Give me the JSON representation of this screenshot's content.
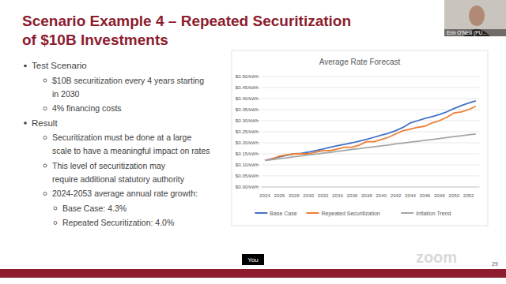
{
  "slide": {
    "title": [
      "Scenario Example 4 – Repeated Securitization",
      "of  $10B Investments"
    ],
    "bullets": [
      {
        "level": 1,
        "lines": [
          "Test Scenario"
        ]
      },
      {
        "level": 2,
        "lines": [
          "$10B securitization every 4 years starting",
          "in 2030"
        ]
      },
      {
        "level": 2,
        "lines": [
          "4% financing costs"
        ]
      },
      {
        "level": 1,
        "lines": [
          "Result"
        ]
      },
      {
        "level": 2,
        "lines": [
          "Securitization must be done at a large",
          "scale to have a meaningful impact on rates"
        ]
      },
      {
        "level": 2,
        "lines": [
          "This level of securitization may",
          "require additional statutory authority"
        ]
      },
      {
        "level": 2,
        "lines": [
          "2024-2053 average annual rate growth:"
        ]
      },
      {
        "level": 3,
        "lines": [
          "Base Case: 4.3%"
        ]
      },
      {
        "level": 3,
        "lines": [
          "Repeated Securitization: 4.0%"
        ]
      }
    ],
    "page_number": "29"
  },
  "overlay": {
    "speaker": "Erin O'Neill (PU...",
    "caption": "You",
    "logo": "zoom"
  },
  "chart_data": {
    "type": "line",
    "title": "Average Rate Forecast",
    "categories": [
      "2024",
      null,
      "2026",
      null,
      "2028",
      null,
      "2030",
      null,
      "2032",
      null,
      "2034",
      null,
      "2036",
      null,
      "2038",
      null,
      "2040",
      null,
      "2042",
      null,
      "2044",
      null,
      "2046",
      null,
      "2048",
      null,
      "2050",
      null,
      "2052",
      null
    ],
    "series": [
      {
        "name": "Base Case",
        "color": "#4472c4",
        "values": [
          0.12,
          0.128,
          0.136,
          0.143,
          0.15,
          0.152,
          0.158,
          0.165,
          0.172,
          0.18,
          0.187,
          0.193,
          0.2,
          0.208,
          0.216,
          0.225,
          0.234,
          0.243,
          0.255,
          0.27,
          0.29,
          0.3,
          0.31,
          0.318,
          0.328,
          0.34,
          0.355,
          0.368,
          0.38,
          0.39
        ]
      },
      {
        "name": "Repeated Securitization",
        "color": "#ed7d31",
        "values": [
          0.12,
          0.126,
          0.14,
          0.145,
          0.15,
          0.15,
          0.15,
          0.158,
          0.165,
          0.165,
          0.172,
          0.18,
          0.18,
          0.19,
          0.205,
          0.205,
          0.215,
          0.225,
          0.24,
          0.255,
          0.262,
          0.27,
          0.275,
          0.29,
          0.3,
          0.315,
          0.335,
          0.34,
          0.35,
          0.365
        ]
      },
      {
        "name": "Inflation Trend",
        "color": "#a5a5a5",
        "values": [
          0.12,
          0.124,
          0.128,
          0.132,
          0.137,
          0.141,
          0.145,
          0.149,
          0.153,
          0.157,
          0.161,
          0.166,
          0.17,
          0.174,
          0.178,
          0.182,
          0.186,
          0.19,
          0.195,
          0.199,
          0.203,
          0.207,
          0.211,
          0.215,
          0.219,
          0.224,
          0.228,
          0.232,
          0.236,
          0.24
        ]
      }
    ],
    "ylim": [
      0,
      0.5
    ],
    "yticks": [
      {
        "value": 0,
        "label": "$0.00/kWh"
      },
      {
        "value": 0.05,
        "label": "$0.05/kWh"
      },
      {
        "value": 0.1,
        "label": "$0.10/kWh"
      },
      {
        "value": 0.15,
        "label": "$0.15/kWh"
      },
      {
        "value": 0.2,
        "label": "$0.20/kWh"
      },
      {
        "value": 0.25,
        "label": "$0.25/kWh"
      },
      {
        "value": 0.3,
        "label": "$0.30/kWh"
      },
      {
        "value": 0.35,
        "label": "$0.35/kWh"
      },
      {
        "value": 0.4,
        "label": "$0.40/kWh"
      },
      {
        "value": 0.45,
        "label": "$0.45/kWh"
      },
      {
        "value": 0.5,
        "label": "$0.50/kWh"
      }
    ],
    "grid": true,
    "legend": "bottom"
  }
}
